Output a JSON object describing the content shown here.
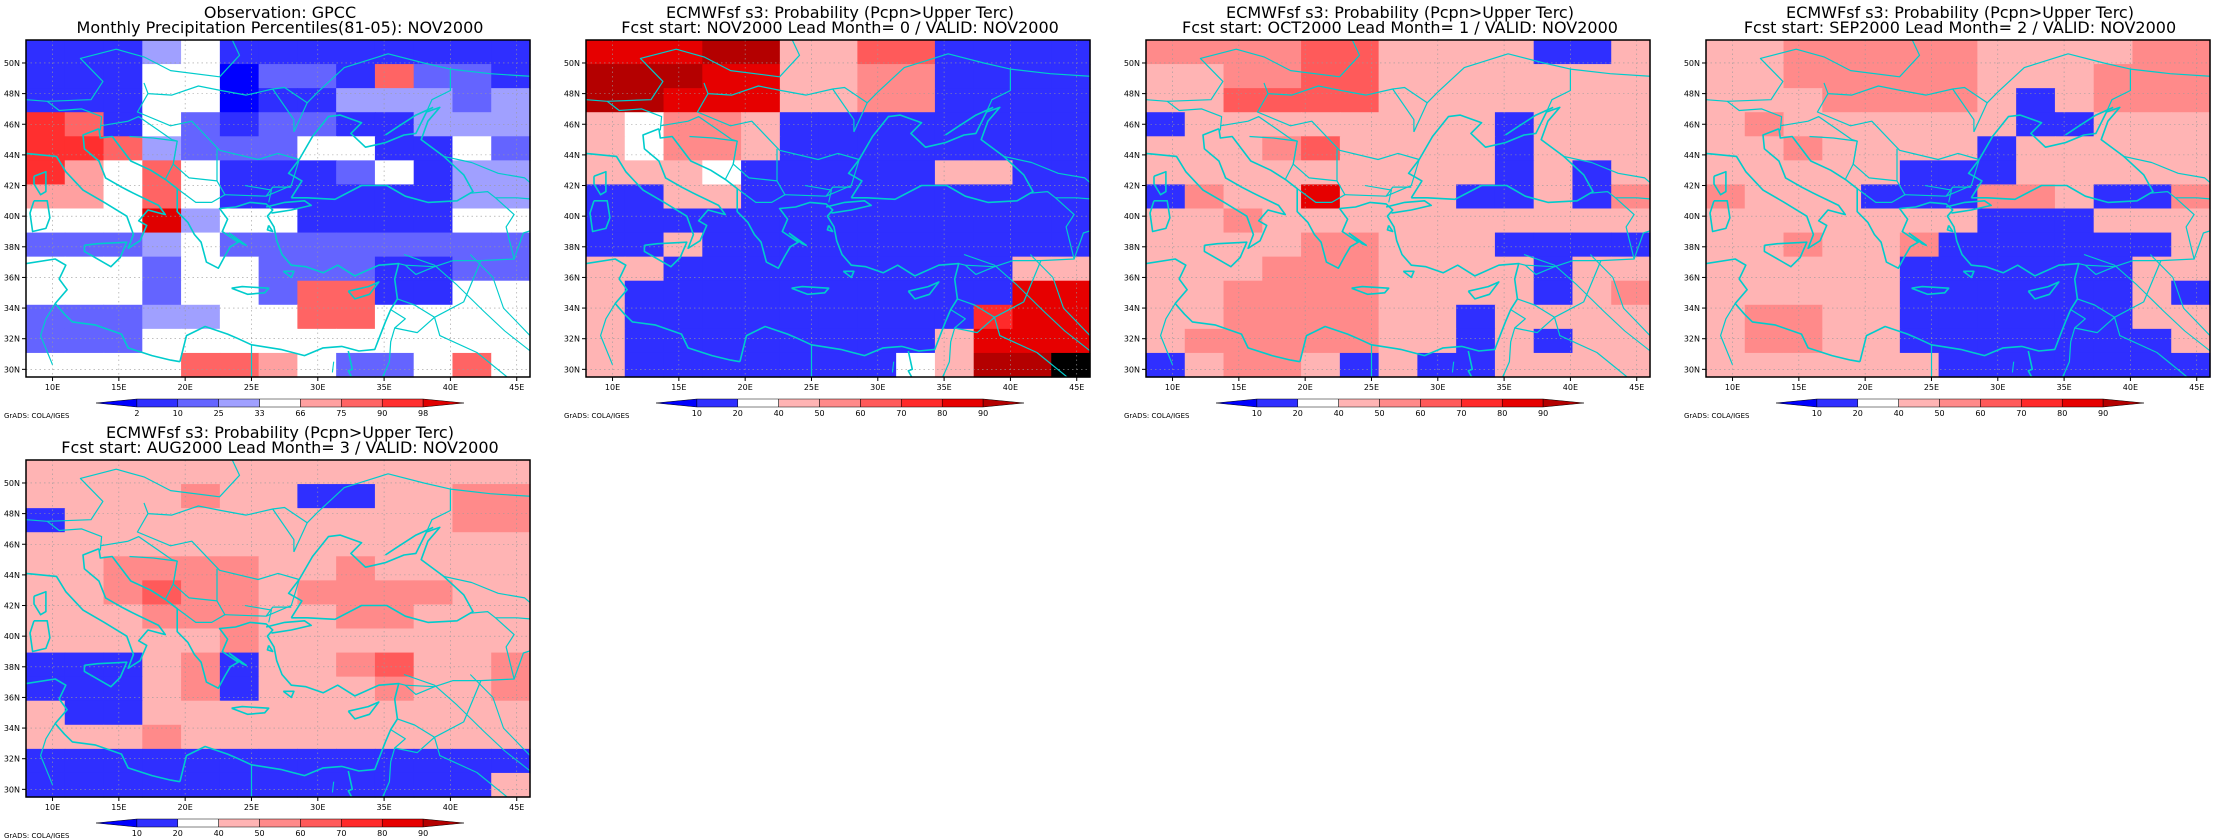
{
  "credit": "GrADS: COLA/IGES",
  "lon_ticks": [
    "10E",
    "15E",
    "20E",
    "25E",
    "30E",
    "35E",
    "40E",
    "45E"
  ],
  "lat_ticks": [
    "50N",
    "48N",
    "46N",
    "44N",
    "42N",
    "40N",
    "38N",
    "36N",
    "34N",
    "32N",
    "30N"
  ],
  "palettes": {
    "obs": {
      "colors": [
        "#0000ff",
        "#2f2fff",
        "#6464ff",
        "#a0a0ff",
        "#ffffff",
        "#ffa0a0",
        "#ff6464",
        "#ff2f2f",
        "#e00000"
      ],
      "labels": [
        "2",
        "10",
        "25",
        "33",
        "66",
        "75",
        "90",
        "98"
      ]
    },
    "prob": {
      "colors": [
        "#0000ff",
        "#2f2fff",
        "#ffffff",
        "#ffb4b4",
        "#ff8a8a",
        "#ff5a5a",
        "#ff2a2a",
        "#e60000",
        "#b40000"
      ],
      "labels": [
        "10",
        "20",
        "40",
        "50",
        "60",
        "70",
        "80",
        "90"
      ]
    }
  },
  "panels": [
    {
      "title1": "Observation: GPCC",
      "title2": "Monthly Precipitation Percentiles(81-05): NOV2000",
      "palette": "obs",
      "grid": [
        "1113411111111",
        "1114402216221",
        "1114401133323",
        "7614212211333",
        "7763222441142",
        "7546411124133",
        "5546411111133",
        "4448344111144",
        "2223422222222",
        "4442442221122",
        "4442442661144",
        "2223344664444",
        "2224444444444",
        "4444665422464"
      ]
    },
    {
      "title1": "ECMWFsf s3: Probability (Pcpn>Upper Terc)",
      "title2": "Fcst start: NOV2000   Lead Month= 0 / VALID: NOV2000",
      "palette": "prob",
      "grid": [
        "7778833551111",
        "8887733441111",
        "8877733441111",
        "3244311111111",
        "3244311111111",
        "3332111113311",
        "1133111111111",
        "1111111111111",
        "1131111111111",
        "3311111111133",
        "3111111111177",
        "3111111111677",
        "3111111113777",
        "3111111123889"
      ]
    },
    {
      "title1": "ECMWFsf s3: Probability (Pcpn>Upper Terc)",
      "title2": "Fcst start: OCT2000   Lead Month= 1 / VALID: NOV2000",
      "palette": "prob",
      "grid": [
        "4444553333113",
        "3344553333333",
        "3355553333333",
        "1333333331333",
        "3334533331333",
        "3333333331313",
        "1433733311314",
        "3343333333333",
        "3333443331111",
        "3334443333133",
        "3344443333134",
        "3344443313333",
        "3444443313133",
        "1344313113333"
      ]
    },
    {
      "title1": "ECMWFsf s3: Probability (Pcpn>Upper Terc)",
      "title2": "Fcst start: SEP2000   Lead Month= 2 / VALID: NOV2000",
      "palette": "prob",
      "grid": [
        "3344444333344",
        "3344444333444",
        "3334444313444",
        "3433333311333",
        "3343333133333",
        "3333311133333",
        "4333111443114",
        "3333333111333",
        "3343341111113",
        "3333311111133",
        "3333311111131",
        "3443311111133",
        "3443311111113",
        "3333331111111"
      ]
    },
    {
      "title1": "ECMWFsf s3: Probability (Pcpn>Upper Terc)",
      "title2": "Fcst start: AUG2000   Lead Month= 3 / VALID: NOV2000",
      "palette": "prob",
      "grid": [
        "3333333333333",
        "3333433113344",
        "1333333333344",
        "3333333333333",
        "3344443343333",
        "3345443444433",
        "3334443344333",
        "3333343333333",
        "1113413345334",
        "1113413334334",
        "3113333333333",
        "3334333333333",
        "1111111111111",
        "1111111111113"
      ]
    }
  ]
}
